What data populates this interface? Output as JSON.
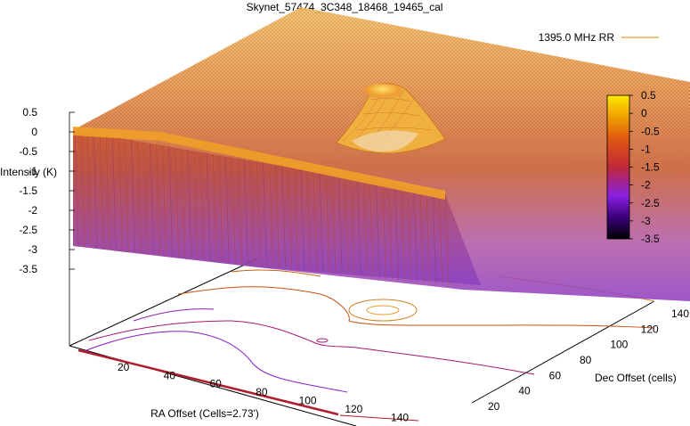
{
  "chart_data": {
    "type": "surface",
    "title": "Skynet_57474_3C348_18468_19465_cal",
    "legend": {
      "position": "top-right",
      "entries": [
        {
          "name": "1395.0 MHz RR",
          "color": "#e8a030"
        }
      ]
    },
    "x_axis": {
      "label": "RA Offset (Cells=2.73')",
      "ticks": [
        20,
        40,
        60,
        80,
        100,
        120,
        140
      ],
      "range": [
        0,
        145
      ]
    },
    "y_axis": {
      "label": "Dec Offset (cells)",
      "ticks": [
        20,
        40,
        60,
        80,
        100,
        120,
        140
      ],
      "range": [
        0,
        145
      ]
    },
    "z_axis": {
      "label": "Intensity (K)",
      "ticks": [
        0.5,
        0,
        -0.5,
        -1,
        -1.5,
        -2,
        -2.5,
        -3,
        -3.5
      ],
      "range": [
        -3.5,
        0.5
      ]
    },
    "colorbar": {
      "ticks": [
        0.5,
        0,
        -0.5,
        -1,
        -1.5,
        -2,
        -2.5,
        -3,
        -3.5
      ],
      "range": [
        -3.5,
        0.5
      ],
      "palette": [
        "#000000",
        "#5a00a8",
        "#a020f0",
        "#c0302c",
        "#e06010",
        "#f0a000",
        "#ffe000"
      ]
    },
    "surface": {
      "background_level": -0.6,
      "source_peak": {
        "ra": 75,
        "dec": 115,
        "height": 0.5
      },
      "scan_edge_level": 0.0,
      "low_corner_level": -3.0
    },
    "contour_base": true,
    "grid": false
  }
}
